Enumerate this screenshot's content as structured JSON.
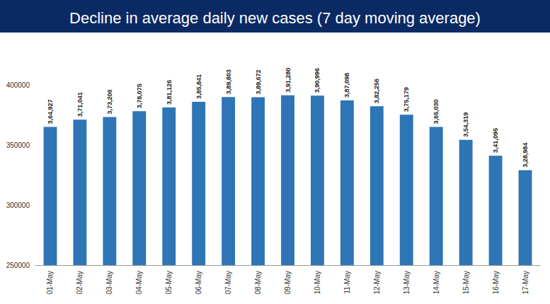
{
  "chart_data": {
    "type": "bar",
    "title": "Decline in average daily new cases (7 day moving average)",
    "categories": [
      "01-May",
      "02-May",
      "03-May",
      "04-May",
      "05-May",
      "06-May",
      "07-May",
      "08-May",
      "09-May",
      "10-May",
      "11-May",
      "12-May",
      "13-May",
      "14-May",
      "15-May",
      "16-May",
      "17-May"
    ],
    "values": [
      364927,
      371041,
      373206,
      378075,
      381126,
      385841,
      389803,
      389672,
      391280,
      390996,
      387098,
      382256,
      375179,
      365030,
      354319,
      341095,
      328984
    ],
    "value_labels": [
      "3,64,927",
      "3,71,041",
      "3,73,206",
      "3,78,075",
      "3,81,126",
      "3,85,841",
      "3,89,803",
      "3,89,672",
      "3,91,280",
      "3,90,996",
      "3,87,098",
      "3,82,256",
      "3,75,179",
      "3,65,030",
      "3,54,319",
      "3,41,095",
      "3,28,984"
    ],
    "color": "#2e75b6",
    "ylim": [
      250000,
      400000
    ],
    "yticks": [
      250000,
      300000,
      350000,
      400000
    ],
    "grid": false,
    "data_labels": true
  }
}
